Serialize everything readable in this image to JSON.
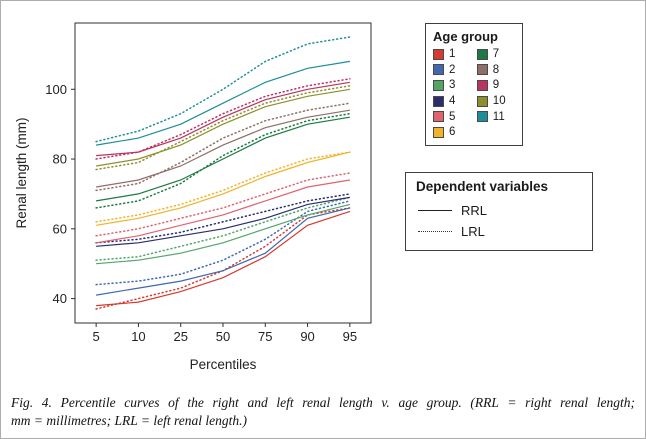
{
  "figure": {
    "caption": {
      "line1": "Fig. 4. Percentile curves of the right and left renal length v. age group. (RRL = right renal length;",
      "line2": "mm = millimetres; LRL = left renal length.)"
    }
  },
  "chart_data": {
    "type": "line",
    "title": "",
    "xlabel": "Percentiles",
    "ylabel": "Renal length (mm)",
    "x_tick_labels": [
      "5",
      "10",
      "25",
      "50",
      "75",
      "90",
      "95"
    ],
    "y_tick_values": [
      40,
      60,
      80,
      100
    ],
    "ylim": [
      33,
      119
    ],
    "grid": false,
    "legend_position": "right",
    "legends": {
      "age_group": {
        "title": "Age group",
        "items": [
          {
            "label": "1",
            "color": "#d53b30"
          },
          {
            "label": "2",
            "color": "#4068b0"
          },
          {
            "label": "3",
            "color": "#53a567"
          },
          {
            "label": "4",
            "color": "#2b2d6e"
          },
          {
            "label": "5",
            "color": "#e0636e"
          },
          {
            "label": "6",
            "color": "#f0b32a"
          },
          {
            "label": "7",
            "color": "#1b7a41"
          },
          {
            "label": "8",
            "color": "#8f6e68"
          },
          {
            "label": "9",
            "color": "#bb3360"
          },
          {
            "label": "10",
            "color": "#8d8f2d"
          },
          {
            "label": "11",
            "color": "#1d8d99"
          }
        ]
      },
      "dependent": {
        "title": "Dependent variables",
        "items": [
          {
            "label": "RRL",
            "style": "solid"
          },
          {
            "label": "LRL",
            "style": "dotted"
          }
        ]
      }
    },
    "series": [
      {
        "age": "1",
        "variable": "RRL",
        "style": "solid",
        "color": "#d53b30",
        "values": [
          38,
          39,
          42,
          46,
          52,
          61,
          65
        ]
      },
      {
        "age": "1",
        "variable": "LRL",
        "style": "dotted",
        "color": "#d53b30",
        "values": [
          37,
          40,
          43,
          48,
          55,
          64,
          66
        ]
      },
      {
        "age": "2",
        "variable": "RRL",
        "style": "solid",
        "color": "#4068b0",
        "values": [
          41,
          43,
          45,
          48,
          53,
          63,
          66
        ]
      },
      {
        "age": "2",
        "variable": "LRL",
        "style": "dotted",
        "color": "#4068b0",
        "values": [
          44,
          45,
          47,
          51,
          57,
          65,
          68
        ]
      },
      {
        "age": "3",
        "variable": "RRL",
        "style": "solid",
        "color": "#53a567",
        "values": [
          50,
          51,
          53,
          56,
          60,
          64,
          67
        ]
      },
      {
        "age": "3",
        "variable": "LRL",
        "style": "dotted",
        "color": "#53a567",
        "values": [
          51,
          52,
          55,
          58,
          62,
          66,
          69
        ]
      },
      {
        "age": "4",
        "variable": "RRL",
        "style": "solid",
        "color": "#2b2d6e",
        "values": [
          55,
          56,
          58,
          60,
          63,
          67,
          69
        ]
      },
      {
        "age": "4",
        "variable": "LRL",
        "style": "dotted",
        "color": "#2b2d6e",
        "values": [
          56,
          57,
          59,
          62,
          65,
          68,
          70
        ]
      },
      {
        "age": "5",
        "variable": "RRL",
        "style": "solid",
        "color": "#e0636e",
        "values": [
          56,
          58,
          61,
          64,
          68,
          72,
          74
        ]
      },
      {
        "age": "5",
        "variable": "LRL",
        "style": "dotted",
        "color": "#e0636e",
        "values": [
          58,
          60,
          63,
          66,
          70,
          74,
          76
        ]
      },
      {
        "age": "6",
        "variable": "RRL",
        "style": "solid",
        "color": "#f0b32a",
        "values": [
          61,
          63,
          66,
          70,
          75,
          79,
          82
        ]
      },
      {
        "age": "6",
        "variable": "LRL",
        "style": "dotted",
        "color": "#f0b32a",
        "values": [
          62,
          64,
          67,
          71,
          76,
          80,
          82
        ]
      },
      {
        "age": "7",
        "variable": "RRL",
        "style": "solid",
        "color": "#1b7a41",
        "values": [
          68,
          70,
          74,
          80,
          86,
          90,
          92
        ]
      },
      {
        "age": "7",
        "variable": "LRL",
        "style": "dotted",
        "color": "#1b7a41",
        "values": [
          66,
          68,
          73,
          81,
          87,
          91,
          93
        ]
      },
      {
        "age": "8",
        "variable": "RRL",
        "style": "solid",
        "color": "#8f6e68",
        "values": [
          72,
          74,
          78,
          84,
          89,
          92,
          94
        ]
      },
      {
        "age": "8",
        "variable": "LRL",
        "style": "dotted",
        "color": "#8f6e68",
        "values": [
          71,
          73,
          79,
          86,
          91,
          94,
          96
        ]
      },
      {
        "age": "9",
        "variable": "RRL",
        "style": "solid",
        "color": "#bb3360",
        "values": [
          81,
          82,
          86,
          92,
          97,
          100,
          102
        ]
      },
      {
        "age": "9",
        "variable": "LRL",
        "style": "dotted",
        "color": "#bb3360",
        "values": [
          80,
          82,
          87,
          93,
          98,
          101,
          103
        ]
      },
      {
        "age": "10",
        "variable": "RRL",
        "style": "solid",
        "color": "#8d8f2d",
        "values": [
          78,
          80,
          84,
          90,
          95,
          98,
          100
        ]
      },
      {
        "age": "10",
        "variable": "LRL",
        "style": "dotted",
        "color": "#8d8f2d",
        "values": [
          77,
          79,
          85,
          91,
          96,
          99,
          101
        ]
      },
      {
        "age": "11",
        "variable": "RRL",
        "style": "solid",
        "color": "#1d8d99",
        "values": [
          84,
          86,
          90,
          96,
          102,
          106,
          108
        ]
      },
      {
        "age": "11",
        "variable": "LRL",
        "style": "dotted",
        "color": "#1d8d99",
        "values": [
          85,
          88,
          93,
          100,
          108,
          113,
          115
        ]
      }
    ]
  }
}
